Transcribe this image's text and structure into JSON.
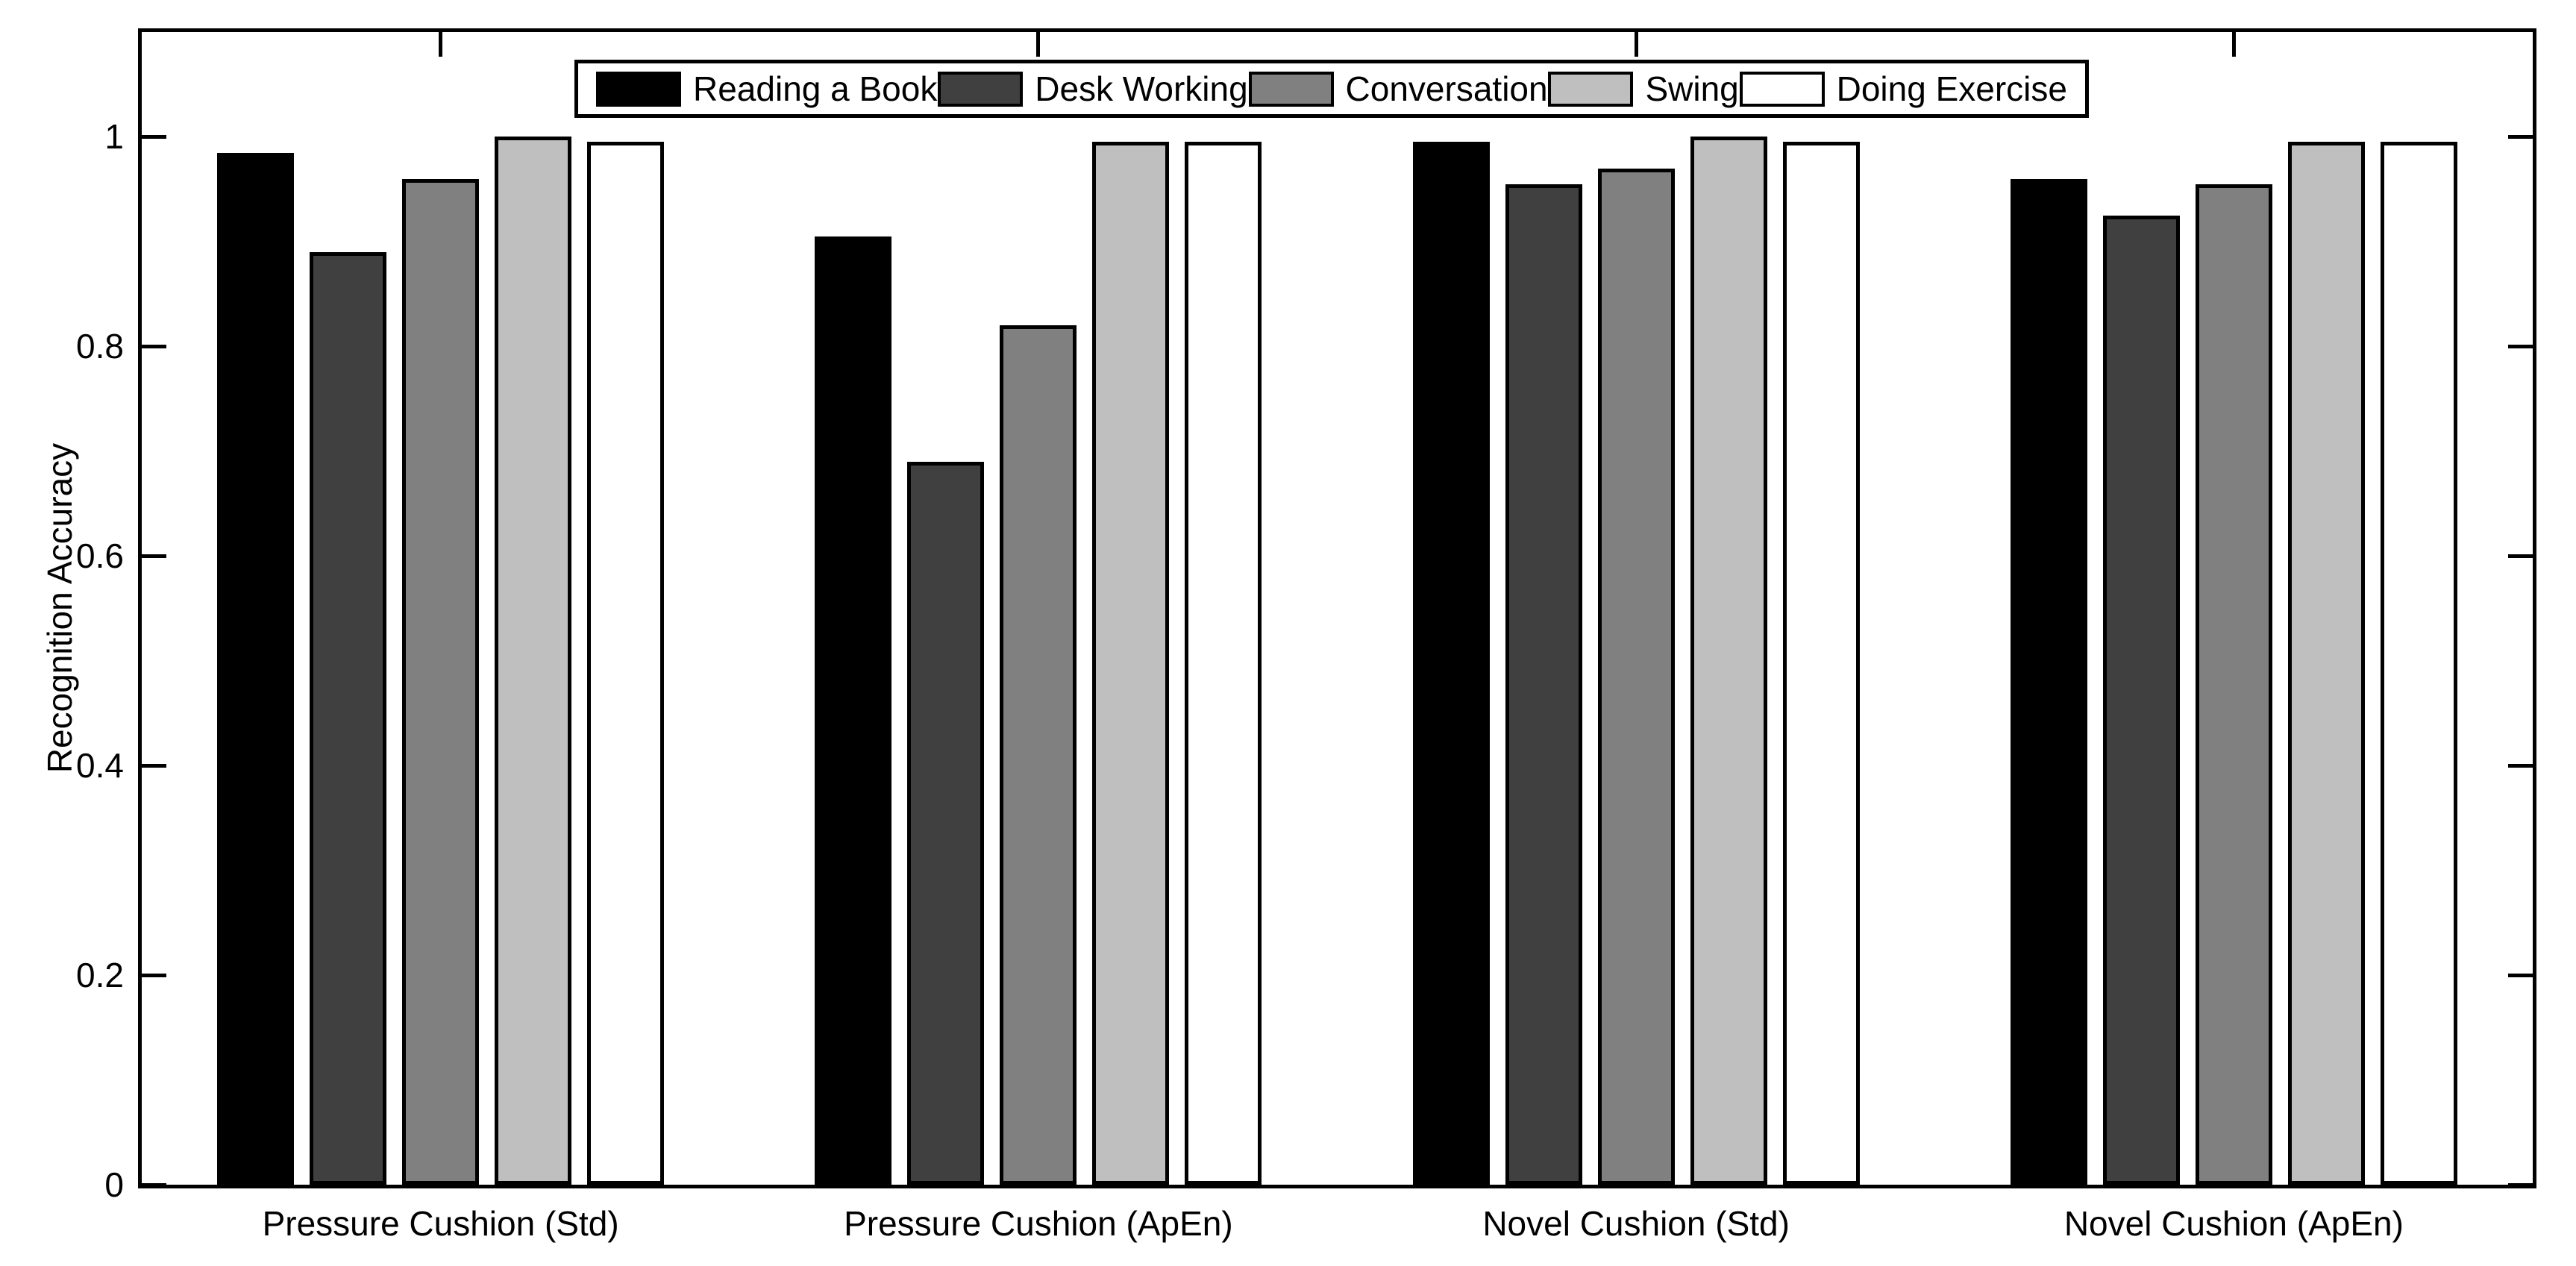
{
  "figure": {
    "background_color": "#FFFFFF",
    "axis_color": "#000000"
  },
  "y_axis": {
    "title": "Recognition Accuracy",
    "tick_labels": [
      "0",
      "0.2",
      "0.4",
      "0.6",
      "0.8",
      "1"
    ],
    "tick_values": [
      0,
      0.2,
      0.4,
      0.6,
      0.8,
      1
    ]
  },
  "x_axis": {
    "tick_labels": [
      "Pressure Cushion (Std)",
      "Pressure Cushion (ApEn)",
      "Novel Cushion (Std)",
      "Novel Cushion (ApEn)"
    ]
  },
  "legend": {
    "items": [
      {
        "label": "Reading a Book",
        "color": "#000000"
      },
      {
        "label": "Desk Working",
        "color": "#404040"
      },
      {
        "label": "Conversation",
        "color": "#808080"
      },
      {
        "label": "Swing",
        "color": "#BFBFBF"
      },
      {
        "label": "Doing Exercise",
        "color": "#FFFFFF"
      }
    ]
  },
  "chart_data": {
    "type": "bar",
    "title": "",
    "xlabel": "",
    "ylabel": "Recognition Accuracy",
    "categories": [
      "Pressure Cushion (Std)",
      "Pressure Cushion (ApEn)",
      "Novel Cushion (Std)",
      "Novel Cushion (ApEn)"
    ],
    "series": [
      {
        "name": "Reading a Book",
        "color": "#000000",
        "values": [
          0.985,
          0.905,
          0.995,
          0.96
        ]
      },
      {
        "name": "Desk Working",
        "color": "#404040",
        "values": [
          0.89,
          0.69,
          0.955,
          0.925
        ]
      },
      {
        "name": "Conversation",
        "color": "#808080",
        "values": [
          0.96,
          0.82,
          0.97,
          0.955
        ]
      },
      {
        "name": "Swing",
        "color": "#BFBFBF",
        "values": [
          1.0,
          0.995,
          1.0,
          0.995
        ]
      },
      {
        "name": "Doing Exercise",
        "color": "#FFFFFF",
        "values": [
          0.995,
          0.995,
          0.995,
          0.995
        ]
      }
    ],
    "ylim": [
      0,
      1.1
    ],
    "yticks": [
      0,
      0.2,
      0.4,
      0.6,
      0.8,
      1
    ],
    "ytick_labels": [
      "0",
      "0.2",
      "0.4",
      "0.6",
      "0.8",
      "1"
    ],
    "grid": false,
    "bar_edge_color": "#000000",
    "legend_position": "top-center-inside"
  }
}
